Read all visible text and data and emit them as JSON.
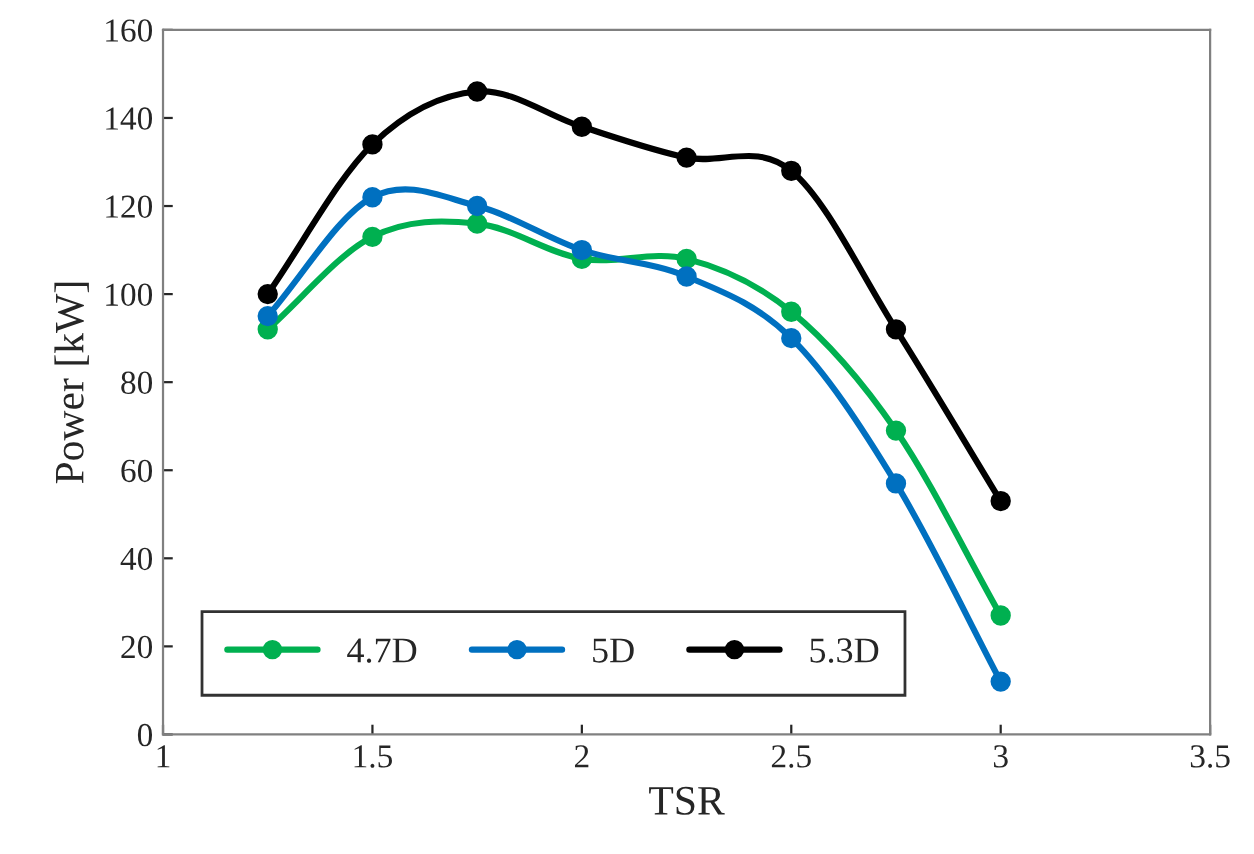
{
  "chart_data": {
    "type": "line",
    "xlabel": "TSR",
    "ylabel": "Power [kW]",
    "x": [
      1.25,
      1.5,
      1.75,
      2,
      2.25,
      2.5,
      2.75,
      3
    ],
    "series": [
      {
        "name": "4.7D",
        "color": "#00b050",
        "values": [
          92,
          113,
          116,
          108,
          108,
          96,
          69,
          27
        ]
      },
      {
        "name": "5D",
        "color": "#0070c0",
        "values": [
          95,
          122,
          120,
          110,
          104,
          90,
          57,
          12
        ]
      },
      {
        "name": "5.3D",
        "color": "#000000",
        "values": [
          100,
          134,
          146,
          138,
          131,
          128,
          92,
          53
        ]
      }
    ],
    "xlim": [
      1,
      3.5
    ],
    "xticks": [
      1,
      1.5,
      2,
      2.5,
      3,
      3.5
    ],
    "ylim": [
      0,
      160
    ],
    "yticks": [
      0,
      20,
      40,
      60,
      80,
      100,
      120,
      140,
      160
    ],
    "grid": false,
    "legend": "bottom left",
    "marker": "circle",
    "line_style": "solid"
  }
}
